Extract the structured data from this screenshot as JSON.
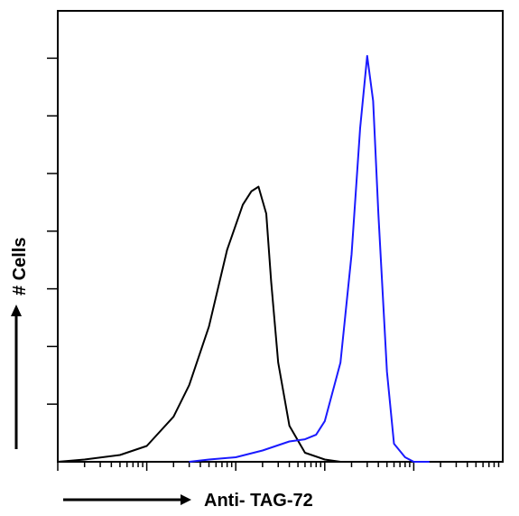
{
  "chart_data": {
    "type": "line",
    "xlabel": "Anti- TAG-72",
    "ylabel": "# Cells",
    "x_scale": "log",
    "xlim": [
      0.1,
      10000
    ],
    "ylim": [
      0,
      100
    ],
    "grid": false,
    "legend": "none",
    "series": [
      {
        "color": "#000000",
        "x": [
          0.1,
          0.2,
          0.5,
          1,
          2,
          3,
          5,
          8,
          12,
          15,
          18,
          22,
          25,
          30,
          40,
          60,
          100,
          150,
          250
        ],
        "values": [
          0,
          0.5,
          1.5,
          3.5,
          10,
          17,
          30,
          47,
          57,
          60,
          61,
          55,
          40,
          22,
          8,
          2,
          0.5,
          0,
          0
        ]
      },
      {
        "color": "#1a1aff",
        "x": [
          3,
          5,
          10,
          20,
          40,
          60,
          80,
          100,
          150,
          200,
          250,
          300,
          350,
          400,
          500,
          600,
          800,
          1000,
          1500
        ],
        "values": [
          0,
          0.5,
          1,
          2.5,
          4.5,
          5,
          6,
          9,
          22,
          46,
          74,
          90,
          80,
          55,
          20,
          4,
          1,
          0,
          0
        ]
      }
    ]
  }
}
